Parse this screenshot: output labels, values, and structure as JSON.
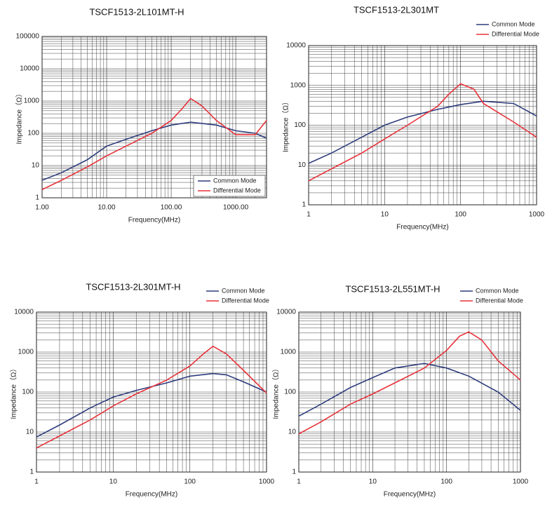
{
  "chart_data": [
    {
      "type": "line",
      "title": "TSCF1513-2L101MT-H",
      "x_label": "Frequency(MHz)",
      "y_label": "Impedance（Ω）",
      "x_log": true,
      "y_log": true,
      "grid": true,
      "legend": "lower right",
      "xlim": [
        1,
        3000
      ],
      "ylim": [
        1,
        100000
      ],
      "xticks": [
        {
          "value": 1,
          "label": "1.00"
        },
        {
          "value": 10,
          "label": "10.00"
        },
        {
          "value": 100,
          "label": "100.00"
        },
        {
          "value": 1000,
          "label": "1000.00"
        }
      ],
      "yticks": [
        1,
        10,
        100,
        1000,
        10000,
        100000
      ],
      "series": [
        {
          "name": "Common Mode",
          "color": "#2e3d7c",
          "x": [
            1,
            2,
            5,
            10,
            20,
            50,
            100,
            200,
            500,
            1000,
            2000,
            3000
          ],
          "values": [
            3.5,
            6,
            15,
            40,
            65,
            120,
            180,
            220,
            180,
            120,
            100,
            70
          ]
        },
        {
          "name": "Differential Mode",
          "color": "#e8323a",
          "x": [
            1,
            2,
            5,
            10,
            20,
            50,
            100,
            150,
            200,
            300,
            500,
            1000,
            2000,
            3000
          ],
          "values": [
            1.8,
            3.5,
            9,
            20,
            40,
            100,
            250,
            600,
            1200,
            700,
            250,
            90,
            90,
            250
          ]
        }
      ]
    },
    {
      "type": "line",
      "title": "TSCF1513-2L301MT",
      "x_label": "Frequency(MHz)",
      "y_label": "Impedance（Ω）",
      "x_log": true,
      "y_log": true,
      "grid": true,
      "legend": "upper right",
      "xlim": [
        1,
        1000
      ],
      "ylim": [
        1,
        10000
      ],
      "xticks": [
        1,
        10,
        100,
        1000
      ],
      "yticks": [
        1,
        10,
        100,
        1000,
        10000
      ],
      "series": [
        {
          "name": "Common Mode",
          "color": "#2e3d7c",
          "x": [
            1,
            2,
            5,
            10,
            20,
            50,
            100,
            200,
            500,
            1000
          ],
          "values": [
            11,
            20,
            50,
            100,
            160,
            250,
            330,
            400,
            350,
            170
          ]
        },
        {
          "name": "Differential Mode",
          "color": "#e8323a",
          "x": [
            1,
            2,
            5,
            10,
            20,
            50,
            70,
            100,
            150,
            200,
            500,
            1000
          ],
          "values": [
            4,
            8,
            20,
            45,
            100,
            300,
            600,
            1100,
            800,
            350,
            120,
            50
          ]
        }
      ]
    },
    {
      "type": "line",
      "title": "TSCF1513-2L301MT-H",
      "x_label": "Frequency(MHz)",
      "y_label": "Impedance（Ω）",
      "x_log": true,
      "y_log": true,
      "grid": true,
      "legend": "upper right",
      "xlim": [
        1,
        1000
      ],
      "ylim": [
        1,
        10000
      ],
      "xticks": [
        1,
        10,
        100,
        1000
      ],
      "yticks": [
        1,
        10,
        100,
        1000,
        10000
      ],
      "series": [
        {
          "name": "Common Mode",
          "color": "#2e3d7c",
          "x": [
            1,
            2,
            5,
            10,
            20,
            50,
            100,
            200,
            300,
            500,
            1000
          ],
          "values": [
            7.5,
            15,
            40,
            75,
            110,
            170,
            250,
            290,
            270,
            180,
            100
          ]
        },
        {
          "name": "Differential Mode",
          "color": "#e8323a",
          "x": [
            1,
            2,
            5,
            10,
            20,
            50,
            100,
            150,
            200,
            300,
            500,
            1000
          ],
          "values": [
            4,
            8,
            20,
            45,
            90,
            200,
            450,
            900,
            1400,
            900,
            350,
            95
          ]
        }
      ]
    },
    {
      "type": "line",
      "title": "TSCF1513-2L551MT-H",
      "x_label": "Frequency(MHz)",
      "y_label": "Impedance（Ω）",
      "x_log": true,
      "y_log": true,
      "grid": true,
      "legend": "upper right",
      "xlim": [
        1,
        1000
      ],
      "ylim": [
        1,
        10000
      ],
      "xticks": [
        1,
        10,
        100,
        1000
      ],
      "yticks": [
        1,
        10,
        100,
        1000,
        10000
      ],
      "series": [
        {
          "name": "Common Mode",
          "color": "#2e3d7c",
          "x": [
            1,
            2,
            5,
            10,
            20,
            50,
            100,
            200,
            500,
            1000
          ],
          "values": [
            25,
            50,
            130,
            230,
            400,
            520,
            400,
            250,
            100,
            35
          ]
        },
        {
          "name": "Differential Mode",
          "color": "#e8323a",
          "x": [
            1,
            2,
            5,
            10,
            20,
            50,
            100,
            150,
            200,
            300,
            500,
            1000
          ],
          "values": [
            9,
            18,
            50,
            90,
            170,
            400,
            1100,
            2500,
            3200,
            2000,
            600,
            200
          ]
        }
      ]
    }
  ]
}
